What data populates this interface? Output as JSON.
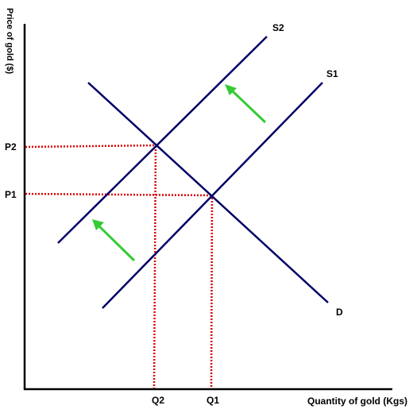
{
  "diagram": {
    "y_axis_label": "Price of gold ($)",
    "x_axis_label": "Quantity of gold (Kgs)",
    "price_labels": {
      "p1": "P1",
      "p2": "P2"
    },
    "quantity_labels": {
      "q1": "Q1",
      "q2": "Q2"
    },
    "curve_labels": {
      "s1": "S1",
      "s2": "S2",
      "d": "D"
    },
    "colors": {
      "axes": "#000000",
      "curves": "#000066",
      "guides": "#dd0000",
      "arrows": "#33cc33"
    }
  }
}
